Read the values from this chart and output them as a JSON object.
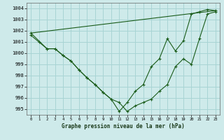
{
  "title": "Graphe pression niveau de la mer (hPa)",
  "background_color": "#ceeaea",
  "grid_color": "#a8d4d4",
  "line_color": "#1a5c1a",
  "xlim": [
    -0.5,
    23.5
  ],
  "ylim": [
    994.5,
    1004.5
  ],
  "yticks": [
    995,
    996,
    997,
    998,
    999,
    1000,
    1001,
    1002,
    1003,
    1004
  ],
  "xticks": [
    0,
    1,
    2,
    3,
    4,
    5,
    6,
    7,
    8,
    9,
    10,
    11,
    12,
    13,
    14,
    15,
    16,
    17,
    18,
    19,
    20,
    21,
    22,
    23
  ],
  "series_dense": {
    "x": [
      0,
      1,
      2,
      3,
      4,
      5,
      6,
      7,
      8,
      9,
      10,
      11,
      12,
      13,
      14,
      15,
      16,
      17,
      18,
      19,
      20,
      21,
      22,
      23
    ],
    "y": [
      1001.6,
      1001.0,
      1000.4,
      1000.4,
      999.8,
      999.3,
      998.5,
      997.8,
      997.2,
      996.5,
      995.9,
      995.6,
      994.8,
      995.3,
      995.6,
      995.9,
      996.6,
      997.2,
      998.8,
      999.5,
      999.0,
      1001.3,
      1003.5,
      1003.7
    ]
  },
  "series_straight": {
    "x": [
      0,
      23
    ],
    "y": [
      1001.8,
      1003.8
    ]
  },
  "series_sparse": {
    "x": [
      0,
      2,
      3,
      4,
      5,
      6,
      7,
      8,
      9,
      10,
      11,
      12,
      13,
      14,
      15,
      16,
      17,
      18,
      19,
      20,
      21,
      22,
      23
    ],
    "y": [
      1001.8,
      1000.4,
      1000.4,
      999.8,
      999.3,
      998.5,
      997.8,
      997.2,
      996.5,
      995.9,
      994.8,
      995.6,
      996.6,
      997.2,
      998.8,
      999.5,
      1001.3,
      1000.2,
      1001.1,
      1003.5,
      1003.7,
      1003.9,
      1003.8
    ]
  }
}
